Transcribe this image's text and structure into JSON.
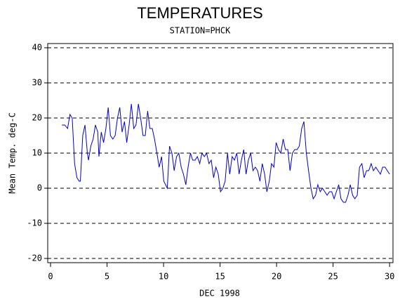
{
  "chart_data": {
    "type": "line",
    "title": "TEMPERATURES",
    "subtitle": "STATION=PHCK",
    "x_label": "DEC 1998",
    "y_label": "Mean Temp. deg-C",
    "xlim": [
      -0.25,
      30.3
    ],
    "ylim": [
      -21.2,
      41.2
    ],
    "xticks": [
      0,
      5,
      10,
      15,
      20,
      25,
      30
    ],
    "yticks": [
      -20,
      -10,
      0,
      10,
      20,
      30,
      40
    ],
    "grid": true,
    "series": [
      {
        "name": "Mean Temp",
        "color": "#0000cc",
        "x": [
          1.0,
          1.26,
          1.51,
          1.72,
          1.92,
          2.13,
          2.33,
          2.54,
          2.64,
          2.85,
          3.05,
          3.26,
          3.36,
          3.56,
          3.77,
          3.97,
          4.18,
          4.28,
          4.49,
          4.69,
          4.9,
          5.1,
          5.3,
          5.51,
          5.72,
          5.92,
          6.13,
          6.33,
          6.54,
          6.74,
          6.95,
          7.15,
          7.36,
          7.56,
          7.77,
          7.97,
          8.18,
          8.38,
          8.59,
          8.79,
          9.0,
          9.2,
          9.41,
          9.61,
          9.82,
          10.02,
          10.33,
          10.53,
          10.74,
          10.94,
          11.15,
          11.35,
          11.56,
          11.76,
          11.97,
          12.17,
          12.38,
          12.58,
          12.79,
          12.99,
          13.2,
          13.4,
          13.61,
          13.81,
          14.02,
          14.22,
          14.43,
          14.63,
          14.84,
          15.04,
          15.25,
          15.45,
          15.66,
          15.86,
          16.07,
          16.27,
          16.48,
          16.68,
          16.89,
          17.09,
          17.3,
          17.5,
          17.71,
          17.91,
          18.12,
          18.32,
          18.53,
          18.73,
          18.94,
          19.14,
          19.35,
          19.55,
          19.76,
          19.96,
          20.17,
          20.37,
          20.58,
          20.78,
          20.99,
          21.19,
          21.4,
          21.6,
          21.81,
          22.01,
          22.22,
          22.42,
          22.63,
          22.83,
          23.04,
          23.24,
          23.45,
          23.65,
          23.86,
          24.06,
          24.27,
          24.47,
          24.68,
          24.88,
          25.09,
          25.29,
          25.5,
          25.7,
          25.91,
          26.11,
          26.32,
          26.52,
          26.73,
          26.93,
          27.14,
          27.34,
          27.55,
          27.75,
          27.96,
          28.16,
          28.37,
          28.57,
          28.78,
          28.98,
          29.19,
          29.39,
          29.6,
          29.8,
          30.0
        ],
        "values": [
          18,
          18,
          17,
          21,
          20,
          7,
          3,
          2,
          2,
          15,
          18,
          10,
          8,
          12,
          14,
          18,
          16,
          9,
          16,
          13,
          17,
          23,
          15,
          14,
          15,
          20,
          23,
          16,
          19,
          13,
          18,
          24,
          17,
          18,
          24,
          20,
          15,
          15,
          22,
          17,
          17,
          14,
          10,
          6,
          9,
          2,
          0,
          12,
          10,
          5,
          9,
          10,
          6,
          4,
          1,
          6,
          10,
          8,
          8,
          9,
          7,
          10,
          9,
          10,
          7,
          8,
          3,
          6,
          4,
          -1,
          0,
          2,
          10,
          4,
          9,
          8,
          10,
          4,
          8,
          11,
          4,
          8,
          10,
          5,
          6,
          5,
          2,
          7,
          4,
          -1,
          2,
          7,
          6,
          13,
          11,
          10,
          14,
          11,
          11,
          5,
          10,
          11,
          11,
          12,
          17,
          19,
          10,
          5,
          0,
          -3,
          -2,
          1,
          -1,
          0,
          -1,
          -2,
          -1,
          -1,
          -3,
          -1,
          1,
          -3,
          -4,
          -4,
          -2,
          1,
          -2,
          -3,
          -2,
          6,
          7,
          3,
          5,
          5,
          7,
          5,
          6,
          5,
          4,
          6,
          6,
          5,
          4
        ]
      }
    ]
  }
}
